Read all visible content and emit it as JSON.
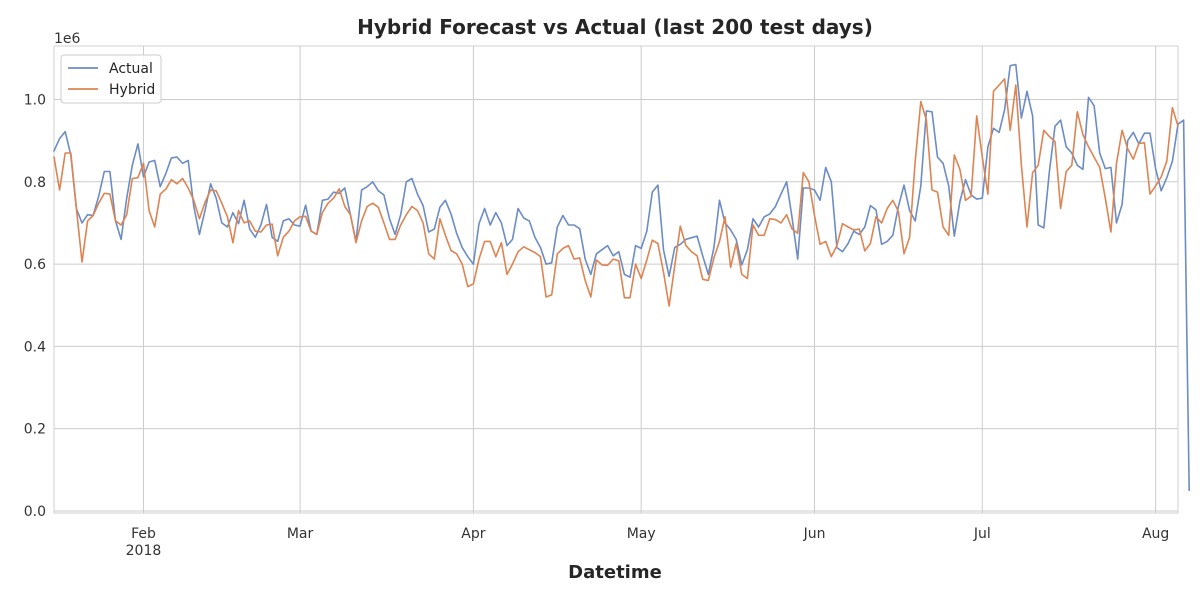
{
  "chart_data": {
    "type": "line",
    "title": "Hybrid Forecast vs Actual (last 200 test days)",
    "xlabel": "Datetime",
    "ylabel": "",
    "y_offset_label": "1e6",
    "ylim": [
      -5000,
      1130000
    ],
    "xlim": [
      "2018-01-16",
      "2018-08-05"
    ],
    "y_ticks": [
      0,
      200000,
      400000,
      600000,
      800000,
      1000000
    ],
    "y_tick_labels": [
      "0.0",
      "0.2",
      "0.4",
      "0.6",
      "0.8",
      "1.0"
    ],
    "x_ticks": [
      {
        "date": "2018-02-01",
        "label": "Feb",
        "sublabel": "2018"
      },
      {
        "date": "2018-03-01",
        "label": "Mar",
        "sublabel": ""
      },
      {
        "date": "2018-04-01",
        "label": "Apr",
        "sublabel": ""
      },
      {
        "date": "2018-05-01",
        "label": "May",
        "sublabel": ""
      },
      {
        "date": "2018-06-01",
        "label": "Jun",
        "sublabel": ""
      },
      {
        "date": "2018-07-01",
        "label": "Jul",
        "sublabel": ""
      },
      {
        "date": "2018-08-01",
        "label": "Aug",
        "sublabel": ""
      }
    ],
    "grid": true,
    "legend_position": "top-left",
    "x_start": "2018-01-16",
    "series": [
      {
        "name": "Actual",
        "color": "#6b8cc4",
        "values": [
          875000,
          905000,
          922000,
          865000,
          735000,
          700000,
          720000,
          718000,
          765000,
          825000,
          825000,
          705000,
          660000,
          760000,
          840000,
          892000,
          812000,
          848000,
          852000,
          788000,
          820000,
          858000,
          860000,
          845000,
          852000,
          740000,
          672000,
          730000,
          795000,
          760000,
          700000,
          690000,
          725000,
          698000,
          755000,
          685000,
          665000,
          695000,
          745000,
          665000,
          655000,
          705000,
          710000,
          695000,
          692000,
          743000,
          680000,
          672000,
          755000,
          758000,
          775000,
          772000,
          785000,
          720000,
          655000,
          780000,
          788000,
          800000,
          778000,
          768000,
          710000,
          672000,
          720000,
          800000,
          808000,
          770000,
          742000,
          678000,
          685000,
          738000,
          755000,
          722000,
          675000,
          640000,
          618000,
          600000,
          698000,
          735000,
          695000,
          725000,
          700000,
          645000,
          660000,
          735000,
          712000,
          705000,
          665000,
          640000,
          600000,
          603000,
          690000,
          718000,
          695000,
          695000,
          686000,
          612000,
          575000,
          625000,
          635000,
          645000,
          620000,
          630000,
          575000,
          568000,
          645000,
          638000,
          680000,
          775000,
          792000,
          635000,
          570000,
          640000,
          648000,
          660000,
          664000,
          668000,
          620000,
          575000,
          640000,
          755000,
          700000,
          683000,
          660000,
          598000,
          635000,
          710000,
          690000,
          715000,
          722000,
          740000,
          770000,
          800000,
          712000,
          612000,
          785000,
          785000,
          780000,
          755000,
          835000,
          800000,
          640000,
          630000,
          650000,
          680000,
          672000,
          690000,
          742000,
          732000,
          648000,
          655000,
          670000,
          740000,
          792000,
          730000,
          705000,
          790000,
          972000,
          970000,
          860000,
          845000,
          790000,
          668000,
          752000,
          805000,
          768000,
          758000,
          760000,
          885000,
          930000,
          920000,
          975000,
          1082000,
          1085000,
          955000,
          1020000,
          960000,
          695000,
          688000,
          825000,
          935000,
          950000,
          885000,
          870000,
          840000,
          830000,
          1005000,
          985000,
          870000,
          832000,
          835000,
          700000,
          745000,
          900000,
          920000,
          892000,
          918000,
          918000,
          832000,
          778000,
          810000,
          850000,
          940000,
          950000,
          50000
        ]
      },
      {
        "name": "Hybrid",
        "color": "#dd8452",
        "values": [
          860000,
          780000,
          870000,
          870000,
          735000,
          605000,
          705000,
          718000,
          748000,
          772000,
          770000,
          705000,
          695000,
          720000,
          808000,
          810000,
          845000,
          730000,
          690000,
          770000,
          782000,
          805000,
          795000,
          808000,
          785000,
          755000,
          710000,
          750000,
          780000,
          778000,
          748000,
          715000,
          652000,
          730000,
          700000,
          705000,
          680000,
          678000,
          695000,
          697000,
          620000,
          665000,
          680000,
          705000,
          715000,
          716000,
          680000,
          672000,
          725000,
          748000,
          760000,
          783000,
          740000,
          720000,
          652000,
          705000,
          740000,
          748000,
          738000,
          700000,
          660000,
          660000,
          695000,
          720000,
          740000,
          730000,
          700000,
          625000,
          612000,
          710000,
          670000,
          633000,
          625000,
          600000,
          545000,
          552000,
          612000,
          655000,
          655000,
          618000,
          652000,
          575000,
          600000,
          630000,
          642000,
          635000,
          628000,
          618000,
          520000,
          525000,
          625000,
          638000,
          645000,
          612000,
          615000,
          560000,
          520000,
          610000,
          598000,
          597000,
          612000,
          608000,
          518000,
          518000,
          600000,
          565000,
          610000,
          658000,
          650000,
          580000,
          498000,
          595000,
          692000,
          645000,
          630000,
          620000,
          563000,
          560000,
          615000,
          655000,
          715000,
          592000,
          650000,
          575000,
          565000,
          695000,
          670000,
          670000,
          710000,
          708000,
          700000,
          720000,
          685000,
          675000,
          822000,
          800000,
          718000,
          648000,
          655000,
          618000,
          645000,
          698000,
          690000,
          683000,
          685000,
          632000,
          650000,
          715000,
          700000,
          735000,
          755000,
          728000,
          625000,
          665000,
          850000,
          995000,
          950000,
          780000,
          775000,
          690000,
          670000,
          865000,
          830000,
          755000,
          765000,
          960000,
          860000,
          770000,
          1020000,
          1035000,
          1050000,
          925000,
          1035000,
          840000,
          690000,
          822000,
          840000,
          925000,
          910000,
          898000,
          735000,
          825000,
          840000,
          970000,
          915000,
          885000,
          860000,
          835000,
          760000,
          678000,
          845000,
          925000,
          880000,
          855000,
          893000,
          895000,
          770000,
          790000,
          812000,
          850000,
          980000,
          935000
        ]
      }
    ]
  }
}
